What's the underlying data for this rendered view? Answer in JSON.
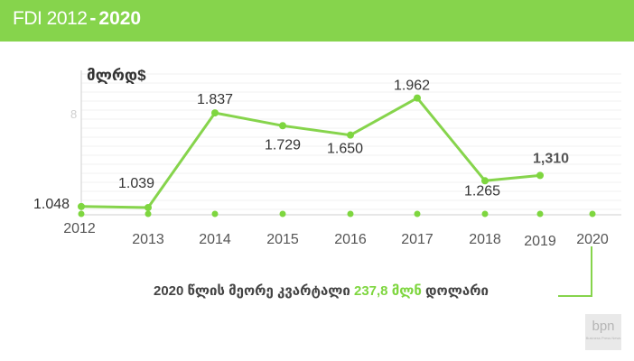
{
  "header": {
    "title_start": "FDI 2012",
    "dash": "-",
    "title_end": "2020"
  },
  "chart_data": {
    "type": "line",
    "ylabel": "მლრდ$",
    "yticks": [
      "8"
    ],
    "categories": [
      "2012",
      "2013",
      "2014",
      "2015",
      "2016",
      "2017",
      "2018",
      "2019",
      "2020"
    ],
    "series": [
      {
        "values": [
          1.048,
          1.039,
          1.837,
          1.729,
          1.65,
          1.962,
          1.265,
          1.31,
          null
        ]
      }
    ],
    "data_labels": [
      "1.048",
      "1.039",
      "1.837",
      "1.729",
      "1.650",
      "1.962",
      "1.265",
      "1,310",
      ""
    ],
    "grid": true,
    "colors": {
      "line": "#86d44c",
      "marker": "#7ed63f"
    }
  },
  "caption": {
    "text_before": "2020 წლის მეორე კვარტალი ",
    "highlight": "237,8 მლნ",
    "text_after": " დოლარი"
  },
  "logo": {
    "line1": "bpn",
    "line2": "Business Press News"
  }
}
